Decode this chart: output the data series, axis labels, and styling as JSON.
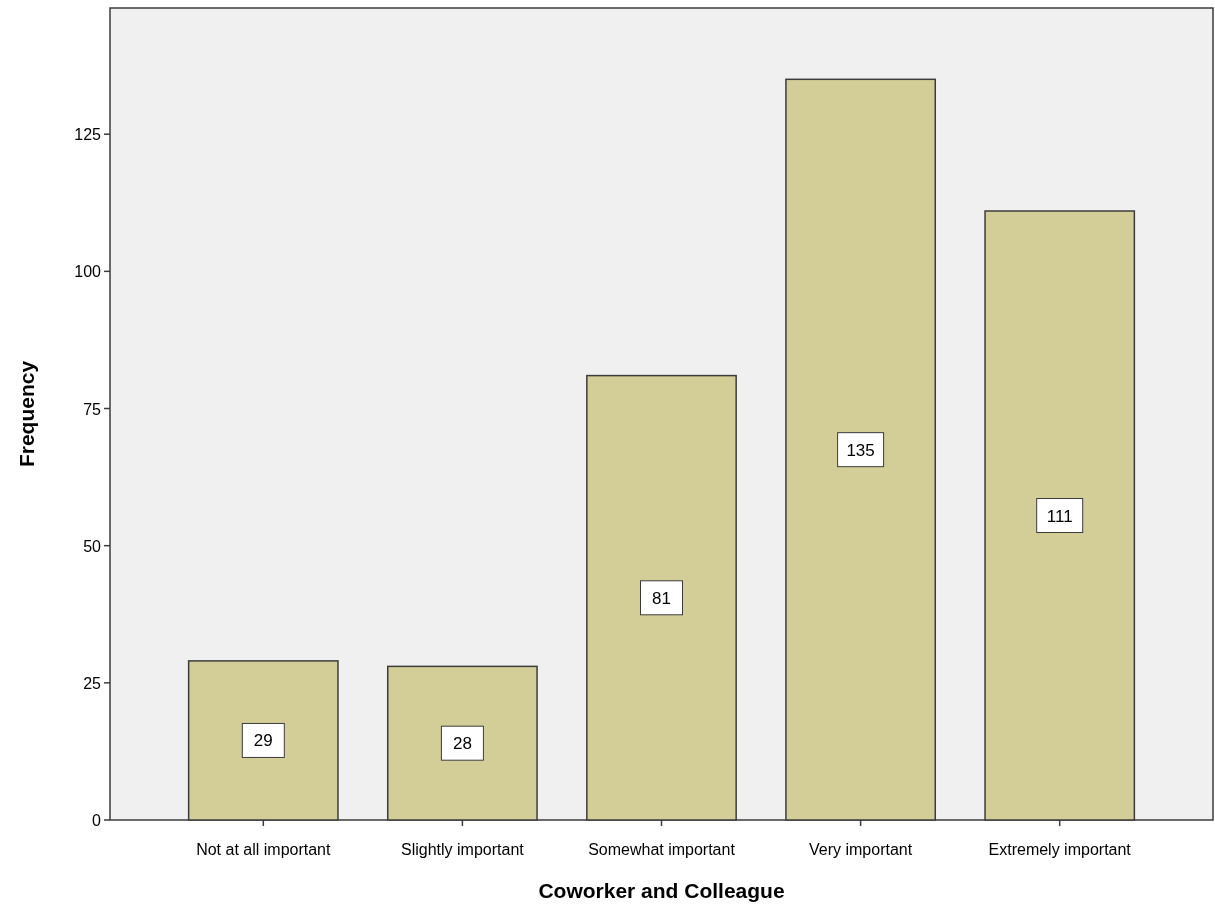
{
  "chart_data": {
    "type": "bar",
    "xlabel": "Coworker and Colleague",
    "ylabel": "Frequency",
    "categories": [
      "Not at all important",
      "Slightly important",
      "Somewhat important",
      "Very important",
      "Extremely important"
    ],
    "values": [
      29,
      28,
      81,
      135,
      111
    ],
    "color": "#d3ce97",
    "ylim": [
      0,
      148
    ],
    "yticks": [
      0,
      25,
      50,
      75,
      100,
      125
    ],
    "grid": false,
    "data_labels": true
  }
}
